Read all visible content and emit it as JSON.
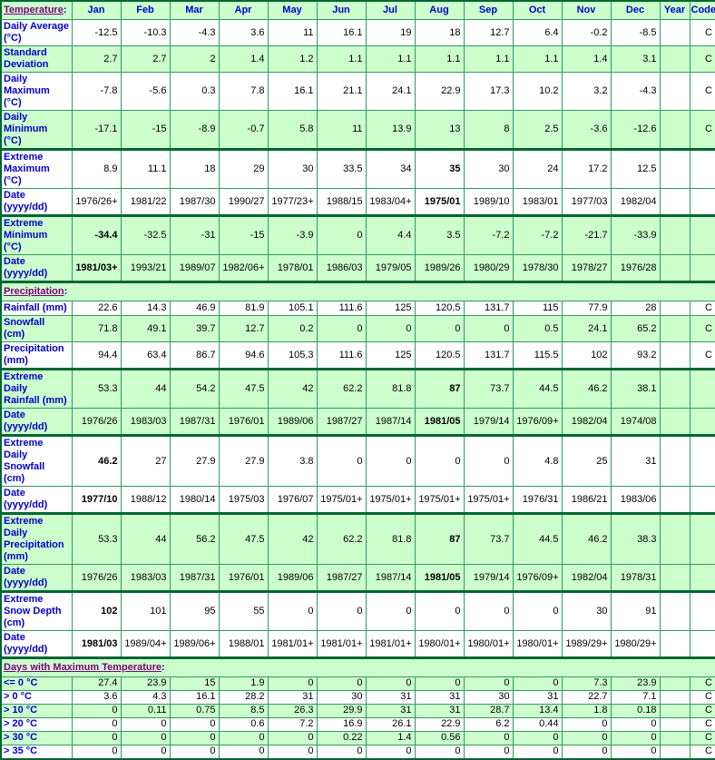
{
  "header": {
    "title": "Temperature",
    "colon": ":",
    "months": [
      "Jan",
      "Feb",
      "Mar",
      "Apr",
      "May",
      "Jun",
      "Jul",
      "Aug",
      "Sep",
      "Oct",
      "Nov",
      "Dec"
    ],
    "year_label": "Year",
    "code_label": "Code"
  },
  "sections": [
    {
      "name": "temperature",
      "rows": [
        {
          "label": "Daily Average\n(°C)",
          "shade": "white",
          "values": [
            "-12.5",
            "-10.3",
            "-4.3",
            "3.6",
            "11",
            "16.1",
            "19",
            "18",
            "12.7",
            "6.4",
            "-0.2",
            "-8.5"
          ],
          "year": "",
          "code": "C",
          "bold": []
        },
        {
          "label": "Standard\nDeviation",
          "shade": "green",
          "values": [
            "2.7",
            "2.7",
            "2",
            "1.4",
            "1.2",
            "1.1",
            "1.1",
            "1.1",
            "1.1",
            "1.1",
            "1.4",
            "3.1"
          ],
          "year": "",
          "code": "C",
          "bold": []
        },
        {
          "label": "Daily\nMaximum\n(°C)",
          "shade": "white",
          "values": [
            "-7.8",
            "-5.6",
            "0.3",
            "7.8",
            "16.1",
            "21.1",
            "24.1",
            "22.9",
            "17.3",
            "10.2",
            "3.2",
            "-4.3"
          ],
          "year": "",
          "code": "C",
          "bold": []
        },
        {
          "label": "Daily\nMinimum\n(°C)",
          "shade": "green",
          "values": [
            "-17.1",
            "-15",
            "-8.9",
            "-0.7",
            "5.8",
            "11",
            "13.9",
            "13",
            "8",
            "2.5",
            "-3.6",
            "-12.6"
          ],
          "year": "",
          "code": "C",
          "bold": []
        },
        {
          "label": "Extreme\nMaximum\n(°C)",
          "shade": "white",
          "group_start": true,
          "values": [
            "8.9",
            "11.1",
            "18",
            "29",
            "30",
            "33.5",
            "34",
            "35",
            "30",
            "24",
            "17.2",
            "12.5"
          ],
          "year": "",
          "code": "",
          "bold": [
            7
          ]
        },
        {
          "label": "Date\n(yyyy/dd)",
          "shade": "white",
          "values": [
            "1976/26+",
            "1981/22",
            "1987/30",
            "1990/27",
            "1977/23+",
            "1988/15",
            "1983/04+",
            "1975/01",
            "1989/10",
            "1983/01",
            "1977/03",
            "1982/04"
          ],
          "year": "",
          "code": "",
          "bold": [
            7
          ]
        },
        {
          "label": "Extreme\nMinimum\n(°C)",
          "shade": "green",
          "group_start": true,
          "values": [
            "-34.4",
            "-32.5",
            "-31",
            "-15",
            "-3.9",
            "0",
            "4.4",
            "3.5",
            "-7.2",
            "-7.2",
            "-21.7",
            "-33.9"
          ],
          "year": "",
          "code": "",
          "bold": [
            0
          ]
        },
        {
          "label": "Date\n(yyyy/dd)",
          "shade": "green",
          "values": [
            "1981/03+",
            "1993/21",
            "1989/07",
            "1982/06+",
            "1978/01",
            "1986/03",
            "1979/05",
            "1989/26",
            "1980/29",
            "1978/30",
            "1978/27",
            "1976/28"
          ],
          "year": "",
          "code": "",
          "bold": [
            0
          ]
        }
      ]
    },
    {
      "name": "precipitation",
      "title": "Precipitation",
      "colon": ":",
      "rows": [
        {
          "label": "Rainfall (mm)",
          "shade": "white",
          "values": [
            "22.6",
            "14.3",
            "46.9",
            "81.9",
            "105.1",
            "111.6",
            "125",
            "120.5",
            "131.7",
            "115",
            "77.9",
            "28"
          ],
          "year": "",
          "code": "C",
          "bold": []
        },
        {
          "label": "Snowfall\n(cm)",
          "shade": "green",
          "values": [
            "71.8",
            "49.1",
            "39.7",
            "12.7",
            "0.2",
            "0",
            "0",
            "0",
            "0",
            "0.5",
            "24.1",
            "65.2"
          ],
          "year": "",
          "code": "C",
          "bold": []
        },
        {
          "label": "Precipitation\n(mm)",
          "shade": "white",
          "values": [
            "94.4",
            "63.4",
            "86.7",
            "94.6",
            "105.3",
            "111.6",
            "125",
            "120.5",
            "131.7",
            "115.5",
            "102",
            "93.2"
          ],
          "year": "",
          "code": "C",
          "bold": []
        },
        {
          "label": "Extreme Daily\nRainfall (mm)",
          "shade": "green",
          "group_start": true,
          "values": [
            "53.3",
            "44",
            "54.2",
            "47.5",
            "42",
            "62.2",
            "81.8",
            "87",
            "73.7",
            "44.5",
            "46.2",
            "38.1"
          ],
          "year": "",
          "code": "",
          "bold": [
            7
          ]
        },
        {
          "label": "Date\n(yyyy/dd)",
          "shade": "green",
          "values": [
            "1976/26",
            "1983/03",
            "1987/31",
            "1976/01",
            "1989/06",
            "1987/27",
            "1987/14",
            "1981/05",
            "1979/14",
            "1976/09+",
            "1982/04",
            "1974/08"
          ],
          "year": "",
          "code": "",
          "bold": [
            7
          ]
        },
        {
          "label": "Extreme Daily\nSnowfall\n(cm)",
          "shade": "white",
          "group_start": true,
          "values": [
            "46.2",
            "27",
            "27.9",
            "27.9",
            "3.8",
            "0",
            "0",
            "0",
            "0",
            "4.8",
            "25",
            "31"
          ],
          "year": "",
          "code": "",
          "bold": [
            0
          ]
        },
        {
          "label": "Date\n(yyyy/dd)",
          "shade": "white",
          "values": [
            "1977/10",
            "1988/12",
            "1980/14",
            "1975/03",
            "1976/07",
            "1975/01+",
            "1975/01+",
            "1975/01+",
            "1975/01+",
            "1976/31",
            "1986/21",
            "1983/06"
          ],
          "year": "",
          "code": "",
          "bold": [
            0
          ]
        },
        {
          "label": "Extreme Daily\nPrecipitation\n(mm)",
          "shade": "green",
          "group_start": true,
          "values": [
            "53.3",
            "44",
            "56.2",
            "47.5",
            "42",
            "62.2",
            "81.8",
            "87",
            "73.7",
            "44.5",
            "46.2",
            "38.3"
          ],
          "year": "",
          "code": "",
          "bold": [
            7
          ]
        },
        {
          "label": "Date\n(yyyy/dd)",
          "shade": "green",
          "values": [
            "1976/26",
            "1983/03",
            "1987/31",
            "1976/01",
            "1989/06",
            "1987/27",
            "1987/14",
            "1981/05",
            "1979/14",
            "1976/09+",
            "1982/04",
            "1978/31"
          ],
          "year": "",
          "code": "",
          "bold": [
            7
          ]
        },
        {
          "label": "Extreme\nSnow Depth\n(cm)",
          "shade": "white",
          "group_start": true,
          "values": [
            "102",
            "101",
            "95",
            "55",
            "0",
            "0",
            "0",
            "0",
            "0",
            "0",
            "30",
            "91"
          ],
          "year": "",
          "code": "",
          "bold": [
            0
          ]
        },
        {
          "label": "Date\n(yyyy/dd)",
          "shade": "white",
          "values": [
            "1981/03",
            "1989/04+",
            "1989/06+",
            "1988/01",
            "1981/01+",
            "1981/01+",
            "1981/01+",
            "1980/01+",
            "1980/01+",
            "1980/01+",
            "1989/29+",
            "1980/29+"
          ],
          "year": "",
          "code": "",
          "bold": [
            0
          ]
        }
      ]
    },
    {
      "name": "days-with-maximum-temperature",
      "title": "Days with Maximum Temperature",
      "colon": ":",
      "compact": true,
      "rows": [
        {
          "label": "<= 0 °C",
          "shade": "green",
          "values": [
            "27.4",
            "23.9",
            "15",
            "1.9",
            "0",
            "0",
            "0",
            "0",
            "0",
            "0",
            "7.3",
            "23.9"
          ],
          "year": "",
          "code": "C",
          "bold": []
        },
        {
          "label": "> 0 °C",
          "shade": "white",
          "values": [
            "3.6",
            "4.3",
            "16.1",
            "28.2",
            "31",
            "30",
            "31",
            "31",
            "30",
            "31",
            "22.7",
            "7.1"
          ],
          "year": "",
          "code": "C",
          "bold": []
        },
        {
          "label": "> 10 °C",
          "shade": "green",
          "values": [
            "0",
            "0.11",
            "0.75",
            "8.5",
            "26.3",
            "29.9",
            "31",
            "31",
            "28.7",
            "13.4",
            "1.8",
            "0.18"
          ],
          "year": "",
          "code": "C",
          "bold": []
        },
        {
          "label": "> 20 °C",
          "shade": "white",
          "values": [
            "0",
            "0",
            "0",
            "0.6",
            "7.2",
            "16.9",
            "26.1",
            "22.9",
            "6.2",
            "0.44",
            "0",
            "0"
          ],
          "year": "",
          "code": "C",
          "bold": []
        },
        {
          "label": "> 30 °C",
          "shade": "green",
          "values": [
            "0",
            "0",
            "0",
            "0",
            "0",
            "0.22",
            "1.4",
            "0.56",
            "0",
            "0",
            "0",
            "0"
          ],
          "year": "",
          "code": "C",
          "bold": []
        },
        {
          "label": "> 35 °C",
          "shade": "white",
          "values": [
            "0",
            "0",
            "0",
            "0",
            "0",
            "0",
            "0",
            "0",
            "0",
            "0",
            "0",
            "0"
          ],
          "year": "",
          "code": "C",
          "bold": []
        }
      ]
    }
  ],
  "colors": {
    "row_green": "#ccffcc",
    "grid_green": "#2f9a63",
    "frame_green": "#006633",
    "label_blue": "#0000cc",
    "link_purple": "#800080"
  }
}
